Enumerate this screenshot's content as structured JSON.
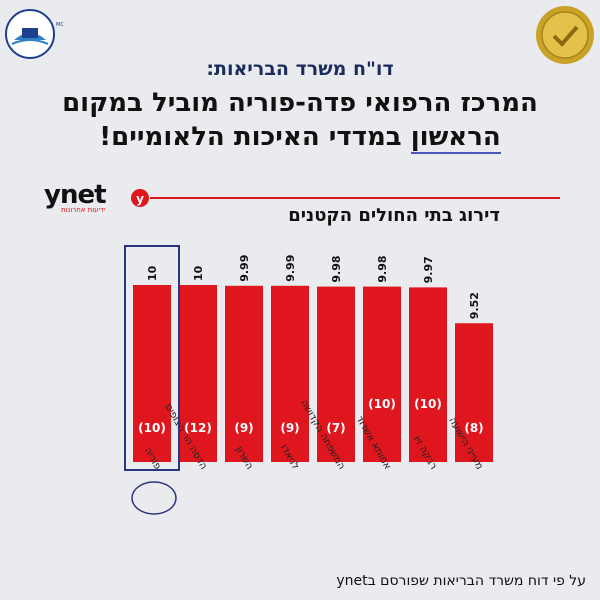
{
  "header": {
    "subtitle": "דו\"ח משרד הבריאות:",
    "headline_line1": "המרכז הרפואי פדה-פוריה מוביל במקום",
    "headline_word_underlined": "הראשון",
    "headline_line2_rest": " במדדי האיכות הלאומיים!"
  },
  "branding": {
    "ynet_logo_text": "ynet",
    "ynet_tagline": "ידיעות אחרונות",
    "ynet_badge": "y",
    "left_logo_icon": "hospital-logo-icon",
    "right_logo_icon": "accreditation-seal-icon"
  },
  "colors": {
    "bar": "#e0161f",
    "accent": "#e0161f",
    "highlight_box": "#2a3580",
    "title": "#1b2c5c"
  },
  "chart_data": {
    "type": "bar",
    "title": "דירוג בתי החולים הקטנים",
    "categories": [
      "פוריה",
      "הדסה הר הצופים",
      "השרון",
      "לניאדו",
      "המשפחה הקדושה",
      "אסותא אשדוד",
      "רבקה זיו",
      "מעייני הישועה"
    ],
    "values": [
      10,
      10,
      9.99,
      9.99,
      9.98,
      9.98,
      9.97,
      9.52
    ],
    "value_labels": [
      "10",
      "10",
      "9.99",
      "9.99",
      "9.98",
      "9.98",
      "9.97",
      "9.52"
    ],
    "inner_labels": [
      "(10)",
      "(12)",
      "(9)",
      "(9)",
      "(7)",
      "(10)",
      "(10)",
      "(8)"
    ],
    "highlighted_index": 0,
    "xlabel": "",
    "ylabel": "",
    "grid": false
  },
  "footer": {
    "source": "על פי דוח משרד הבריאות שפורסם בynet"
  }
}
